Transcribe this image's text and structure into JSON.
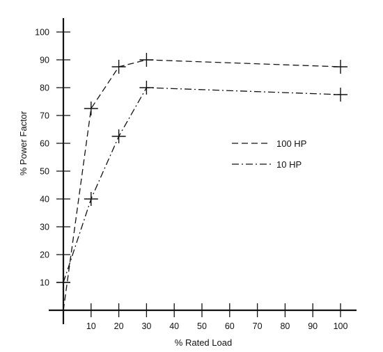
{
  "chart_data": {
    "type": "line",
    "xlabel": "% Rated Load",
    "ylabel": "% Power Factor",
    "x_ticks": [
      "10",
      "20",
      "30",
      "40",
      "50",
      "60",
      "70",
      "80",
      "90",
      "100"
    ],
    "y_ticks": [
      "10",
      "20",
      "30",
      "40",
      "50",
      "60",
      "70",
      "80",
      "90",
      "100"
    ],
    "ylim": [
      0,
      100
    ],
    "grid": false,
    "legend_position": "right-middle",
    "series": [
      {
        "name": "100 HP",
        "line_style": "dashed",
        "color": "#111111",
        "points": [
          {
            "x": 0,
            "y": 0
          },
          {
            "x": 10,
            "y": 72.5
          },
          {
            "x": 20,
            "y": 87.5
          },
          {
            "x": 30,
            "y": 90
          },
          {
            "x": 100,
            "y": 87.5
          }
        ]
      },
      {
        "name": "10 HP",
        "line_style": "dash-dot",
        "color": "#111111",
        "points": [
          {
            "x": 0,
            "y": 0
          },
          {
            "x": 0,
            "y": 10
          },
          {
            "x": 10,
            "y": 40
          },
          {
            "x": 20,
            "y": 62.5
          },
          {
            "x": 30,
            "y": 80
          },
          {
            "x": 100,
            "y": 77.5
          }
        ]
      }
    ]
  }
}
